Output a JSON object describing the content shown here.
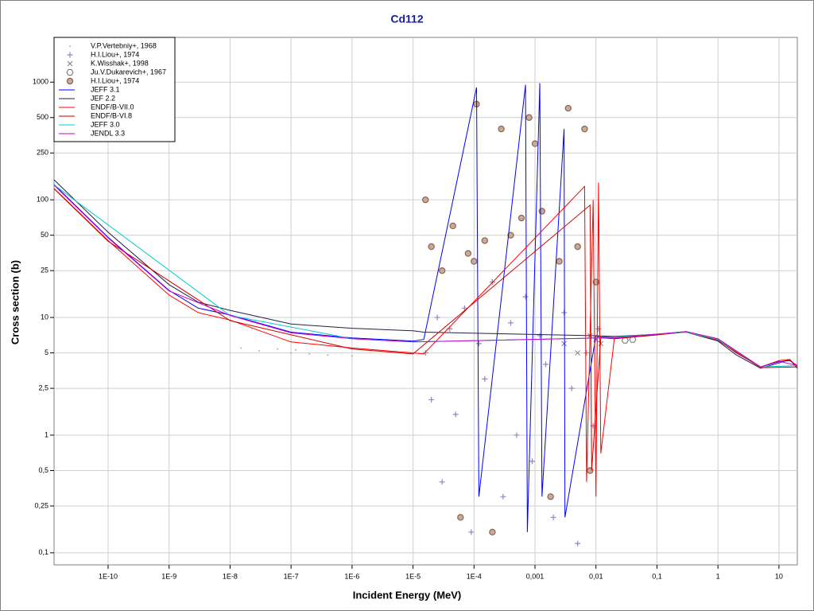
{
  "chart_data": {
    "type": "scatter",
    "title": "Cd112",
    "x_label": "Incident Energy (MeV)",
    "y_label": "Cross section (b)",
    "xscale": "log",
    "yscale": "log",
    "grid": true,
    "legend": "top-left",
    "xlim": [
      1.3e-11,
      20
    ],
    "ylim": [
      0.079,
      2400
    ],
    "xticks": [
      {
        "value": 1e-10,
        "label": "1E-10"
      },
      {
        "value": 1e-09,
        "label": "1E-9"
      },
      {
        "value": 1e-08,
        "label": "1E-8"
      },
      {
        "value": 1e-07,
        "label": "1E-7"
      },
      {
        "value": 1e-06,
        "label": "1E-6"
      },
      {
        "value": 1e-05,
        "label": "1E-5"
      },
      {
        "value": 0.0001,
        "label": "1E-4"
      },
      {
        "value": 0.001,
        "label": "0,001"
      },
      {
        "value": 0.01,
        "label": "0,01"
      },
      {
        "value": 0.1,
        "label": "0,1"
      },
      1,
      10
    ],
    "yticks": [
      {
        "value": 0.1,
        "label": "0,1"
      },
      {
        "value": 0.25,
        "label": "0,25"
      },
      {
        "value": 0.5,
        "label": "0,5"
      },
      1,
      {
        "value": 2.5,
        "label": "2,5"
      },
      5,
      10,
      25,
      50,
      100,
      250,
      500,
      1000
    ],
    "series": [
      {
        "name": "V.P.Vertebniy+, 1968",
        "mode": "markers",
        "marker": "dot",
        "color": "#9a9ac0",
        "x": [
          1.5e-08,
          3e-08,
          6e-08,
          1e-07,
          1.2e-07,
          2e-07,
          4e-07,
          1e-06
        ],
        "values": [
          5.5,
          5.2,
          5.4,
          5.0,
          5.3,
          4.9,
          4.8,
          4.7
        ]
      },
      {
        "name": "H.I.Liou+, 1974",
        "mode": "markers",
        "marker": "plus",
        "color": "#9b80b8",
        "x": [
          1.6e-05,
          2e-05,
          2.5e-05,
          3e-05,
          4e-05,
          5e-05,
          7e-05,
          9e-05,
          0.00012,
          0.00015,
          0.0002,
          0.0003,
          0.0004,
          0.0005,
          0.0007,
          0.0009,
          0.0012,
          0.0015,
          0.002,
          0.003,
          0.004,
          0.005,
          0.007,
          0.009,
          0.011
        ],
        "values": [
          5,
          2,
          10,
          0.4,
          8,
          1.5,
          12,
          0.15,
          6,
          3,
          20,
          0.3,
          9,
          1,
          15,
          0.6,
          7,
          4,
          0.2,
          11,
          2.5,
          0.12,
          5,
          1.2,
          8
        ]
      },
      {
        "name": "K.Wisshak+, 1998",
        "mode": "markers",
        "marker": "cross",
        "color": "#808080",
        "x": [
          0.003,
          0.005,
          0.008,
          0.01,
          0.012
        ],
        "values": [
          6,
          5,
          7,
          6.5,
          6
        ]
      },
      {
        "name": "Ju.V.Dukarevich+, 1967",
        "mode": "markers",
        "marker": "hex",
        "color": "#707070",
        "x": [
          0.03,
          0.04
        ],
        "values": [
          6.4,
          6.5
        ]
      },
      {
        "name": "H.I.Liou+, 1974",
        "mode": "markers",
        "marker": "circle",
        "color": "#8c6450",
        "x": [
          1.6e-05,
          2e-05,
          3e-05,
          4.5e-05,
          6e-05,
          8e-05,
          0.0001,
          0.00011,
          0.00015,
          0.0002,
          0.00028,
          0.0004,
          0.0006,
          0.0008,
          0.001,
          0.0013,
          0.0018,
          0.0025,
          0.0035,
          0.005,
          0.0065,
          0.008,
          0.01
        ],
        "values": [
          100,
          40,
          25,
          60,
          0.2,
          35,
          30,
          650,
          45,
          0.15,
          400,
          50,
          70,
          500,
          300,
          80,
          0.3,
          30,
          600,
          40,
          400,
          0.5,
          20
        ]
      },
      {
        "name": "JEFF 3.1",
        "mode": "lines",
        "color": "#0000ff",
        "x": [
          1.3e-11,
          1e-10,
          1e-09,
          3e-09,
          1e-08,
          1e-07,
          1e-06,
          1e-05,
          1.5e-05,
          0.00011,
          0.00012,
          0.0007,
          0.00075,
          0.0012,
          0.0013,
          0.003,
          0.0031,
          0.01,
          0.012,
          0.02,
          0.1,
          0.3,
          1,
          2,
          5,
          10,
          15,
          20
        ],
        "values": [
          135,
          48,
          17,
          12,
          10.5,
          7.5,
          6.7,
          6.3,
          6.5,
          900,
          0.3,
          950,
          0.15,
          980,
          0.3,
          400,
          0.2,
          7,
          6.8,
          6.8,
          7.2,
          7.6,
          6.5,
          5,
          3.8,
          4.2,
          4.3,
          3.9
        ]
      },
      {
        "name": "JEF 2.2",
        "mode": "lines",
        "color": "#222244",
        "x": [
          1.3e-11,
          1e-10,
          1e-09,
          3e-09,
          1e-08,
          1e-07,
          1e-06,
          1e-05,
          1.5e-05,
          0.01,
          0.02,
          0.1,
          0.3,
          1,
          2,
          5,
          10,
          15,
          20
        ],
        "values": [
          148,
          53,
          19,
          13.5,
          11.5,
          8.8,
          8.1,
          7.7,
          7.5,
          7,
          6.9,
          7.2,
          7.5,
          6.3,
          4.8,
          3.7,
          4.1,
          4.4,
          3.7
        ]
      },
      {
        "name": "ENDF/B-VII.0",
        "mode": "lines",
        "color": "#ff0000",
        "x": [
          1.3e-11,
          1e-10,
          1e-09,
          3e-09,
          1e-08,
          1e-07,
          1e-06,
          1e-05,
          1.5e-05,
          0.0065,
          0.007,
          0.009,
          0.01,
          0.011,
          0.012,
          0.02,
          0.1,
          0.3,
          1,
          2,
          5,
          10,
          15,
          20
        ],
        "values": [
          125,
          45,
          15.5,
          11,
          9.5,
          6.2,
          5.5,
          5,
          4.9,
          130,
          0.4,
          100,
          0.3,
          140,
          0.7,
          6.6,
          7.1,
          7.6,
          6.5,
          5,
          3.8,
          4.3,
          4.4,
          3.8
        ]
      },
      {
        "name": "ENDF/B-VI.8",
        "mode": "lines",
        "color": "#cc0000",
        "x": [
          1.3e-11,
          1e-10,
          1e-08,
          1e-06,
          1e-05,
          0.008,
          0.0085,
          0.012,
          0.02,
          0.3,
          1,
          5,
          20
        ],
        "values": [
          124,
          44.5,
          9.4,
          5.4,
          4.9,
          90,
          0.5,
          6.7,
          6.6,
          7.5,
          6.4,
          3.75,
          3.8
        ]
      },
      {
        "name": "JEFF 3.0",
        "mode": "lines",
        "color": "#00cccc",
        "x": [
          1.3e-11,
          1e-08,
          1e-06,
          1e-05,
          0.012,
          0.3,
          1,
          5,
          20
        ],
        "values": [
          134,
          10.4,
          6.6,
          6.2,
          6.7,
          7.5,
          6.5,
          3.8,
          3.9
        ]
      },
      {
        "name": "JENDL 3.3",
        "mode": "lines",
        "color": "#cc00cc",
        "x": [
          1.3e-11,
          1e-10,
          1e-09,
          1e-08,
          1e-07,
          1e-06,
          1e-05,
          0.012,
          0.02,
          0.3,
          1,
          5,
          10,
          20
        ],
        "values": [
          133,
          47.5,
          16.8,
          10.4,
          7.4,
          6.6,
          6.2,
          6.7,
          6.7,
          7.6,
          6.6,
          3.8,
          4.25,
          3.9
        ]
      }
    ]
  }
}
